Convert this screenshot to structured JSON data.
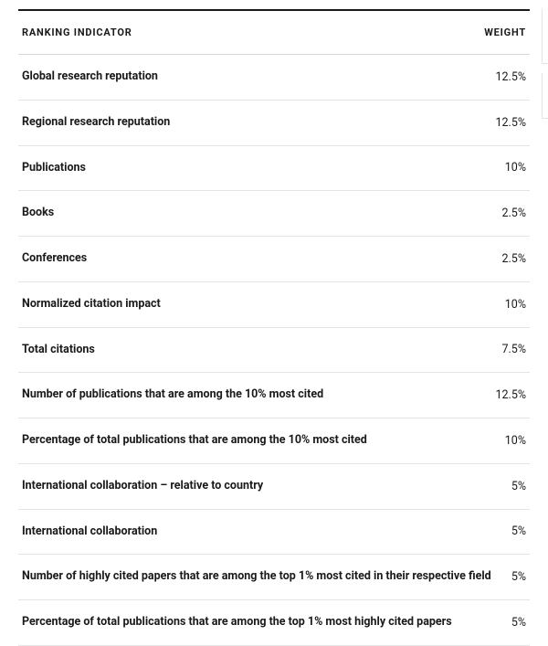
{
  "table": {
    "headers": {
      "indicator": "RANKING INDICATOR",
      "weight": "WEIGHT"
    },
    "rows": [
      {
        "label": "Global research reputation",
        "weight": "12.5%"
      },
      {
        "label": "Regional research reputation",
        "weight": "12.5%"
      },
      {
        "label": "Publications",
        "weight": "10%"
      },
      {
        "label": "Books",
        "weight": "2.5%"
      },
      {
        "label": "Conferences",
        "weight": "2.5%"
      },
      {
        "label": "Normalized citation impact",
        "weight": "10%"
      },
      {
        "label": "Total citations",
        "weight": "7.5%"
      },
      {
        "label": "Number of publications that are among the 10% most cited",
        "weight": "12.5%"
      },
      {
        "label": "Percentage of total publications that are among the 10% most cited",
        "weight": "10%"
      },
      {
        "label": "International collaboration – relative to country",
        "weight": "5%"
      },
      {
        "label": "International collaboration",
        "weight": "5%"
      },
      {
        "label": "Number of highly cited papers that are among the top 1% most cited in their respective field",
        "weight": "5%"
      },
      {
        "label": "Percentage of total publications that are among the top 1% most highly cited papers",
        "weight": "5%"
      }
    ],
    "colors": {
      "top_border": "#1a1a1a",
      "header_border": "#d8d8d8",
      "row_border": "#e4e4e4",
      "text": "#1a1a1a",
      "background": "#ffffff"
    },
    "typography": {
      "header_fontsize": 11,
      "header_weight": 700,
      "header_letterspacing": 0.8,
      "label_fontsize": 12.5,
      "label_weight": 700,
      "weight_fontsize": 12.5,
      "weight_fontweight": 400
    }
  }
}
